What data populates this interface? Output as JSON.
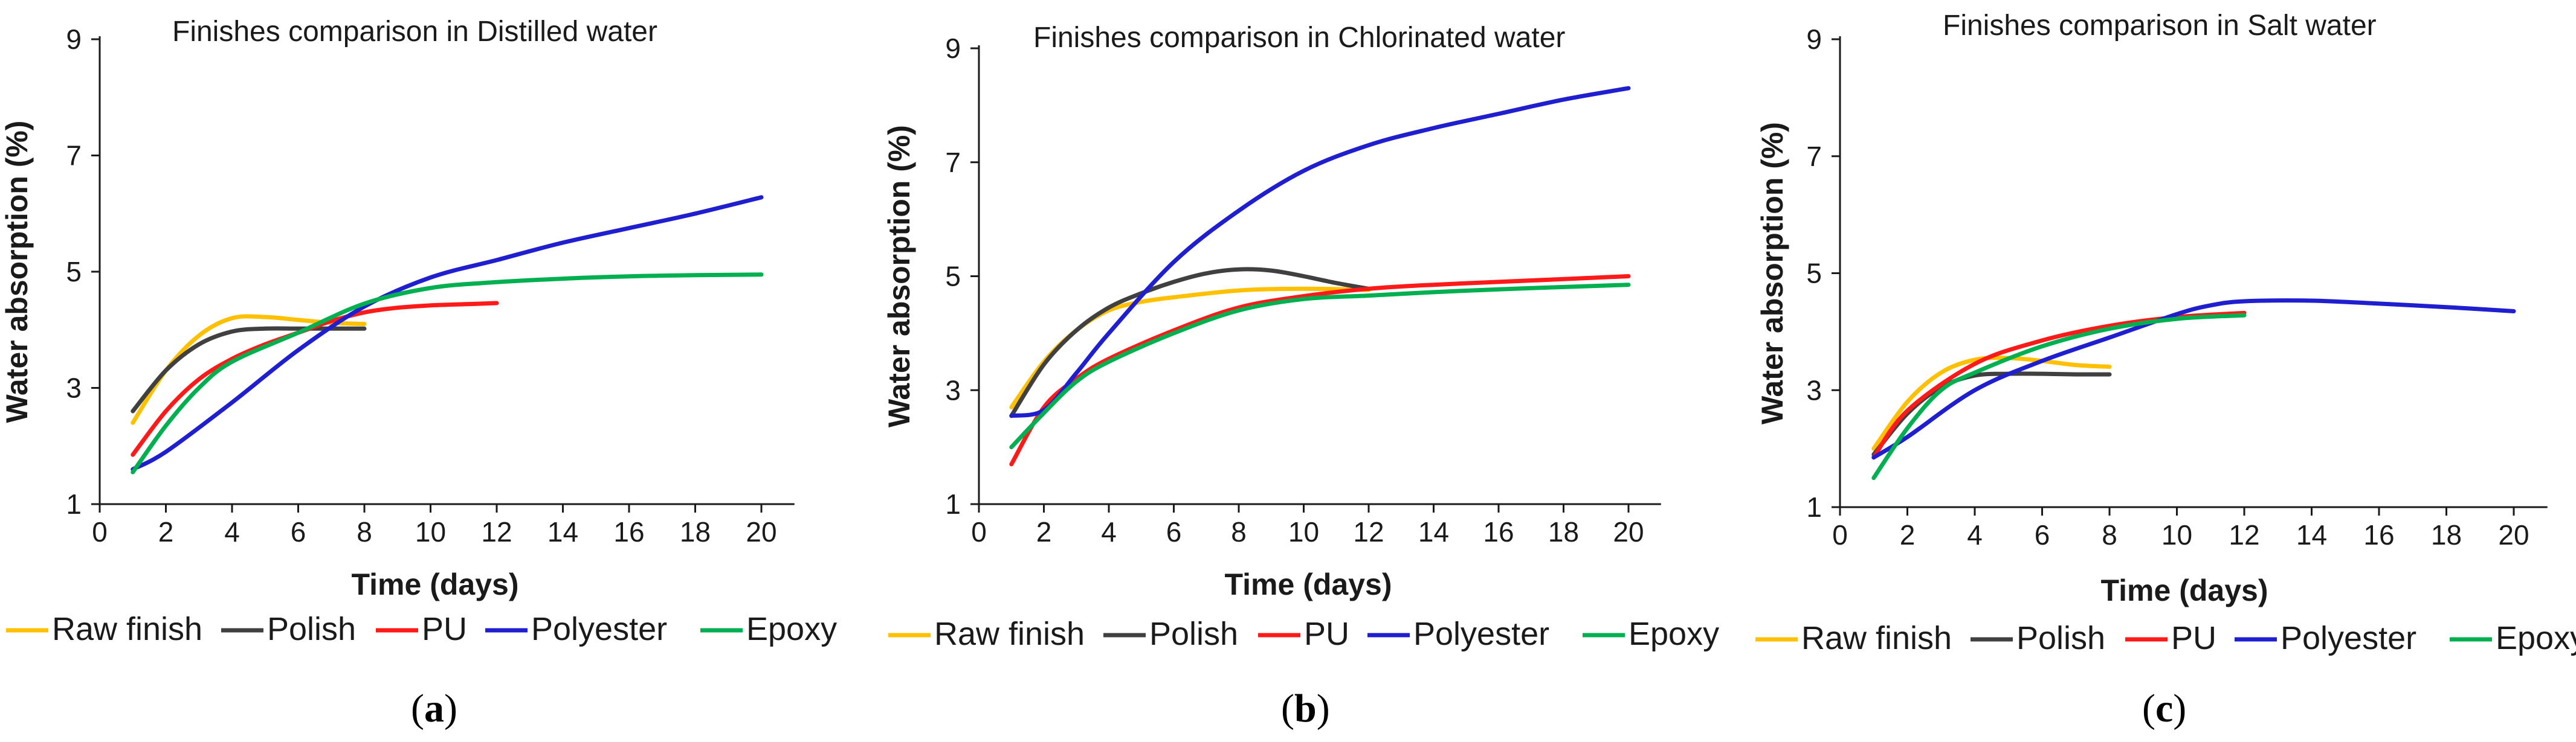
{
  "colors": {
    "raw_finish": "#FFC000",
    "polish": "#404040",
    "pu": "#FF1A1A",
    "polyester": "#1F1FD0",
    "epoxy": "#00B050"
  },
  "chart_data": [
    {
      "type": "line",
      "panel_label": "a",
      "title": "Finishes comparison in Distilled water",
      "xlabel": "Time (days)",
      "ylabel": "Water absorption (%)",
      "xlim": [
        0,
        21
      ],
      "ylim": [
        1,
        9
      ],
      "xticks": [
        0,
        2,
        4,
        6,
        8,
        10,
        12,
        14,
        16,
        18,
        20
      ],
      "yticks": [
        1,
        3,
        5,
        7,
        9
      ],
      "legend_position": "bottom",
      "series": [
        {
          "name": "Raw finish",
          "key": "raw_finish",
          "x": [
            1,
            2,
            3,
            4,
            5,
            6,
            7,
            8
          ],
          "y": [
            2.4,
            3.3,
            3.9,
            4.2,
            4.22,
            4.17,
            4.12,
            4.1
          ]
        },
        {
          "name": "Polish",
          "key": "polish",
          "x": [
            1,
            2,
            3,
            4,
            5,
            6,
            7,
            8
          ],
          "y": [
            2.6,
            3.3,
            3.75,
            3.97,
            4.02,
            4.02,
            4.02,
            4.02
          ]
        },
        {
          "name": "PU",
          "key": "pu",
          "x": [
            1,
            2,
            3,
            4,
            5,
            6,
            7,
            8,
            9,
            10,
            11,
            12
          ],
          "y": [
            1.85,
            2.6,
            3.15,
            3.5,
            3.75,
            3.95,
            4.15,
            4.3,
            4.38,
            4.42,
            4.44,
            4.46
          ]
        },
        {
          "name": "Polyester",
          "key": "polyester",
          "x": [
            1,
            2,
            4,
            6,
            8,
            10,
            12,
            14,
            16,
            18,
            20
          ],
          "y": [
            1.6,
            1.9,
            2.75,
            3.65,
            4.4,
            4.9,
            5.2,
            5.5,
            5.75,
            6.0,
            6.28
          ]
        },
        {
          "name": "Epoxy",
          "key": "epoxy",
          "x": [
            1,
            2,
            3,
            4,
            6,
            8,
            10,
            12,
            14,
            16,
            18,
            20
          ],
          "y": [
            1.55,
            2.35,
            3.0,
            3.45,
            3.95,
            4.45,
            4.72,
            4.82,
            4.88,
            4.92,
            4.94,
            4.95
          ]
        }
      ]
    },
    {
      "type": "line",
      "panel_label": "b",
      "title": "Finishes comparison in Chlorinated water",
      "xlabel": "Time (days)",
      "ylabel": "Water absorption (%)",
      "xlim": [
        0,
        21
      ],
      "ylim": [
        1,
        9
      ],
      "xticks": [
        0,
        2,
        4,
        6,
        8,
        10,
        12,
        14,
        16,
        18,
        20
      ],
      "yticks": [
        1,
        3,
        5,
        7,
        9
      ],
      "legend_position": "bottom",
      "series": [
        {
          "name": "Raw finish",
          "key": "raw_finish",
          "x": [
            1,
            2,
            3,
            4,
            5,
            6,
            8,
            10,
            12
          ],
          "y": [
            2.7,
            3.5,
            4.05,
            4.4,
            4.55,
            4.63,
            4.75,
            4.78,
            4.76
          ]
        },
        {
          "name": "Polish",
          "key": "polish",
          "x": [
            1,
            2,
            3,
            4,
            5,
            6,
            7,
            8,
            9,
            10,
            11,
            12
          ],
          "y": [
            2.55,
            3.45,
            4.05,
            4.45,
            4.7,
            4.9,
            5.05,
            5.12,
            5.1,
            5.0,
            4.88,
            4.78
          ]
        },
        {
          "name": "PU",
          "key": "pu",
          "x": [
            1,
            2,
            3,
            4,
            6,
            8,
            10,
            12,
            14,
            16,
            18,
            20
          ],
          "y": [
            1.7,
            2.7,
            3.2,
            3.55,
            4.05,
            4.45,
            4.65,
            4.78,
            4.85,
            4.9,
            4.95,
            5.0
          ]
        },
        {
          "name": "Polyester",
          "key": "polyester",
          "x": [
            1,
            2,
            3,
            4,
            6,
            8,
            10,
            12,
            14,
            16,
            18,
            20
          ],
          "y": [
            2.55,
            2.65,
            3.3,
            4.0,
            5.25,
            6.15,
            6.85,
            7.3,
            7.6,
            7.85,
            8.1,
            8.3
          ]
        },
        {
          "name": "Epoxy",
          "key": "epoxy",
          "x": [
            1,
            2,
            3,
            4,
            6,
            8,
            10,
            12,
            14,
            16,
            18,
            20
          ],
          "y": [
            2.0,
            2.6,
            3.15,
            3.5,
            4.0,
            4.4,
            4.6,
            4.66,
            4.72,
            4.77,
            4.81,
            4.85
          ]
        }
      ]
    },
    {
      "type": "line",
      "panel_label": "c",
      "title": "Finishes comparison in Salt water",
      "xlabel": "Time (days)",
      "ylabel": "Water absorption (%)",
      "xlim": [
        0,
        21
      ],
      "ylim": [
        1,
        9
      ],
      "xticks": [
        0,
        2,
        4,
        6,
        8,
        10,
        12,
        14,
        16,
        18,
        20
      ],
      "yticks": [
        1,
        3,
        5,
        7,
        9
      ],
      "legend_position": "bottom",
      "series": [
        {
          "name": "Raw finish",
          "key": "raw_finish",
          "x": [
            1,
            2,
            3,
            4,
            5,
            6,
            7,
            8
          ],
          "y": [
            2.0,
            2.8,
            3.3,
            3.52,
            3.55,
            3.5,
            3.43,
            3.4
          ]
        },
        {
          "name": "Polish",
          "key": "polish",
          "x": [
            1,
            2,
            3,
            4,
            5,
            6,
            7,
            8
          ],
          "y": [
            1.9,
            2.6,
            3.05,
            3.25,
            3.28,
            3.28,
            3.27,
            3.27
          ]
        },
        {
          "name": "PU",
          "key": "pu",
          "x": [
            1,
            2,
            4,
            6,
            8,
            10,
            12
          ],
          "y": [
            1.85,
            2.65,
            3.45,
            3.85,
            4.1,
            4.25,
            4.32
          ]
        },
        {
          "name": "Polyester",
          "key": "polyester",
          "x": [
            1,
            2,
            4,
            6,
            8,
            10,
            11,
            12,
            14,
            16,
            18,
            20
          ],
          "y": [
            1.85,
            2.2,
            3.0,
            3.5,
            3.9,
            4.3,
            4.45,
            4.52,
            4.53,
            4.48,
            4.42,
            4.35
          ]
        },
        {
          "name": "Epoxy",
          "key": "epoxy",
          "x": [
            1,
            2,
            3,
            4,
            6,
            8,
            10,
            12
          ],
          "y": [
            1.5,
            2.35,
            3.0,
            3.3,
            3.75,
            4.05,
            4.22,
            4.28
          ]
        }
      ]
    }
  ]
}
